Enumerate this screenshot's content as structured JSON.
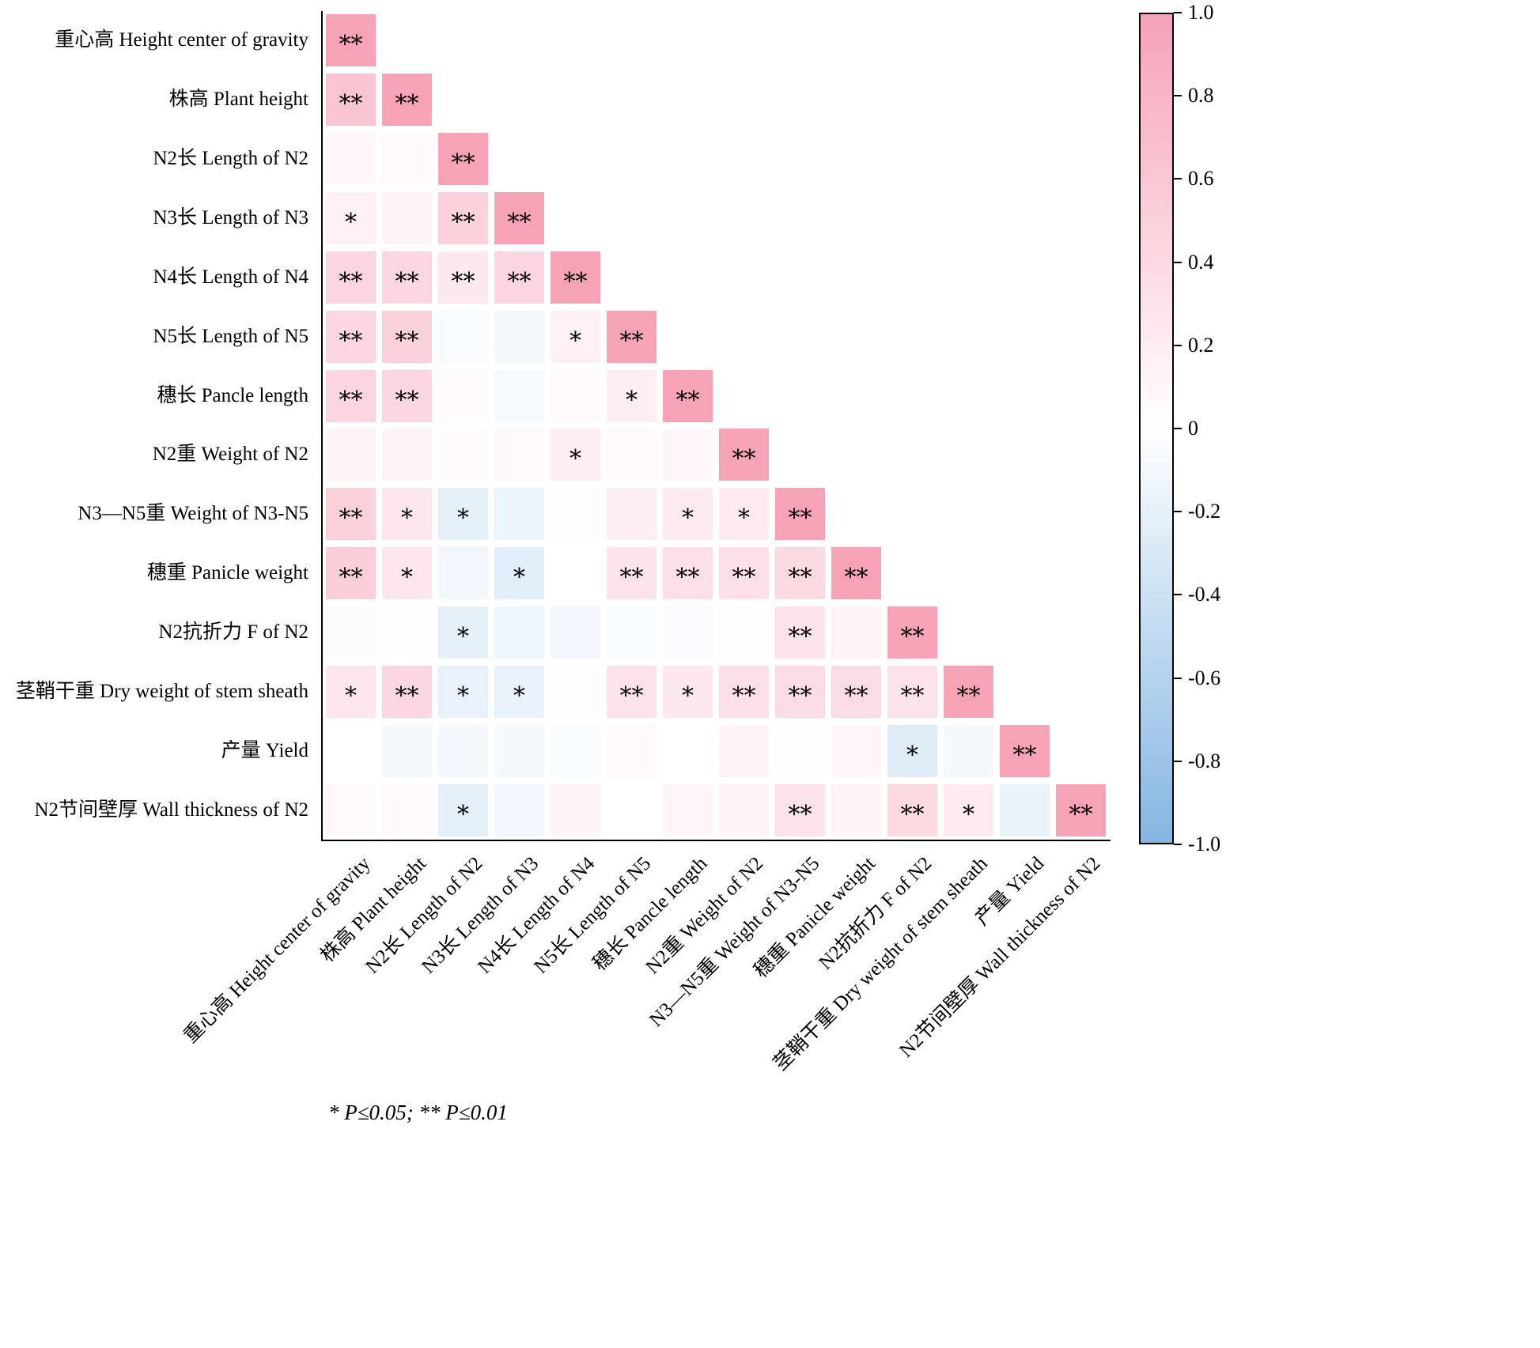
{
  "figure": {
    "footnote": "* P≤0.05;  ** P≤0.01",
    "colorbar": {
      "ticks": [
        "1.0",
        "0.8",
        "0.6",
        "0.4",
        "0.2",
        "0",
        "-0.2",
        "-0.4",
        "-0.6",
        "-0.8",
        "-1.0"
      ],
      "max_color": "#F6A2B7",
      "mid_color": "#FFFFFF",
      "min_color": "#84B5E1"
    }
  },
  "chart_data": {
    "type": "heatmap",
    "subtype": "lower-triangular-correlation-matrix",
    "value_range": [
      -1,
      1
    ],
    "legend_position": "right-colorbar",
    "significance_note": "* P≤0.05; ** P≤0.01",
    "labels": [
      "重心高 Height center of gravity",
      "株高 Plant height",
      "N2长 Length of N2",
      "N3长 Length of N3",
      "N4长 Length of N4",
      "N5长 Length of N5",
      "穗长 Pancle length",
      "N2重 Weight of N2",
      "N3—N5重 Weight of N3-N5",
      "穗重 Panicle weight",
      "N2抗折力 F of N2",
      "茎鞘干重 Dry weight of stem sheath",
      "产量 Yield",
      "N2节间壁厚 Wall thickness of N2"
    ],
    "matrix_format": "rows of [correlation_value, significance]; row i has i+1 cells (lower triangle incl. diagonal)",
    "matrix": [
      [
        [
          1.0,
          "**"
        ]
      ],
      [
        [
          0.62,
          "**"
        ],
        [
          1.0,
          "**"
        ]
      ],
      [
        [
          0.1,
          ""
        ],
        [
          0.08,
          ""
        ],
        [
          1.0,
          "**"
        ]
      ],
      [
        [
          0.16,
          "*"
        ],
        [
          0.12,
          ""
        ],
        [
          0.5,
          "**"
        ],
        [
          1.0,
          "**"
        ]
      ],
      [
        [
          0.45,
          "**"
        ],
        [
          0.42,
          "**"
        ],
        [
          0.25,
          "**"
        ],
        [
          0.45,
          "**"
        ],
        [
          1.0,
          "**"
        ]
      ],
      [
        [
          0.42,
          "**"
        ],
        [
          0.48,
          "**"
        ],
        [
          -0.06,
          ""
        ],
        [
          -0.1,
          ""
        ],
        [
          0.16,
          "*"
        ],
        [
          1.0,
          "**"
        ]
      ],
      [
        [
          0.45,
          "**"
        ],
        [
          0.42,
          "**"
        ],
        [
          0.05,
          ""
        ],
        [
          -0.07,
          ""
        ],
        [
          0.06,
          ""
        ],
        [
          0.18,
          "*"
        ],
        [
          1.0,
          "**"
        ]
      ],
      [
        [
          0.12,
          ""
        ],
        [
          0.12,
          ""
        ],
        [
          0.05,
          ""
        ],
        [
          0.08,
          ""
        ],
        [
          0.18,
          "*"
        ],
        [
          0.06,
          ""
        ],
        [
          0.1,
          ""
        ],
        [
          1.0,
          "**"
        ]
      ],
      [
        [
          0.48,
          "**"
        ],
        [
          0.26,
          "*"
        ],
        [
          -0.2,
          "*"
        ],
        [
          -0.15,
          ""
        ],
        [
          0.03,
          ""
        ],
        [
          0.18,
          ""
        ],
        [
          0.22,
          "*"
        ],
        [
          0.22,
          "*"
        ],
        [
          1.0,
          "**"
        ]
      ],
      [
        [
          0.52,
          "**"
        ],
        [
          0.26,
          "*"
        ],
        [
          -0.12,
          ""
        ],
        [
          -0.24,
          "*"
        ],
        [
          0.0,
          ""
        ],
        [
          0.3,
          "**"
        ],
        [
          0.34,
          "**"
        ],
        [
          0.34,
          "**"
        ],
        [
          0.4,
          "**"
        ],
        [
          1.0,
          "**"
        ]
      ],
      [
        [
          -0.04,
          ""
        ],
        [
          0.02,
          ""
        ],
        [
          -0.2,
          "*"
        ],
        [
          -0.14,
          ""
        ],
        [
          -0.12,
          ""
        ],
        [
          -0.06,
          ""
        ],
        [
          -0.05,
          ""
        ],
        [
          0.02,
          ""
        ],
        [
          0.3,
          "**"
        ],
        [
          0.12,
          ""
        ],
        [
          1.0,
          "**"
        ]
      ],
      [
        [
          0.26,
          "*"
        ],
        [
          0.42,
          "**"
        ],
        [
          -0.18,
          "*"
        ],
        [
          -0.18,
          "*"
        ],
        [
          0.03,
          ""
        ],
        [
          0.3,
          "**"
        ],
        [
          0.25,
          "*"
        ],
        [
          0.34,
          "**"
        ],
        [
          0.38,
          "**"
        ],
        [
          0.38,
          "**"
        ],
        [
          0.3,
          "**"
        ],
        [
          1.0,
          "**"
        ]
      ],
      [
        [
          0.0,
          ""
        ],
        [
          -0.08,
          ""
        ],
        [
          -0.08,
          ""
        ],
        [
          -0.08,
          ""
        ],
        [
          -0.06,
          ""
        ],
        [
          0.08,
          ""
        ],
        [
          0.0,
          ""
        ],
        [
          0.12,
          ""
        ],
        [
          0.02,
          ""
        ],
        [
          0.1,
          ""
        ],
        [
          -0.26,
          "*"
        ],
        [
          -0.08,
          ""
        ],
        [
          1.0,
          "**"
        ]
      ],
      [
        [
          0.08,
          ""
        ],
        [
          0.06,
          ""
        ],
        [
          -0.22,
          "*"
        ],
        [
          -0.12,
          ""
        ],
        [
          0.12,
          ""
        ],
        [
          0.0,
          ""
        ],
        [
          0.1,
          ""
        ],
        [
          0.12,
          ""
        ],
        [
          0.3,
          "**"
        ],
        [
          0.12,
          ""
        ],
        [
          0.4,
          "**"
        ],
        [
          0.24,
          "*"
        ],
        [
          -0.16,
          ""
        ],
        [
          1.0,
          "**"
        ]
      ]
    ]
  }
}
